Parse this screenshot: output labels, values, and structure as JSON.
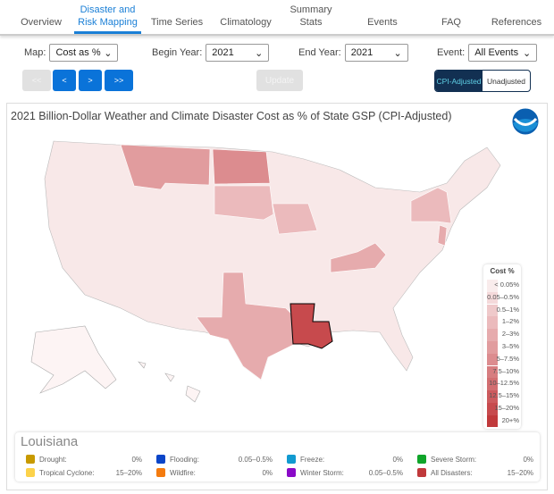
{
  "nav": {
    "tabs": [
      {
        "label": "Overview"
      },
      {
        "label": "Disaster and Risk Mapping",
        "active": true
      },
      {
        "label": "Time Series"
      },
      {
        "label": "Climatology"
      },
      {
        "label": "Summary Stats"
      },
      {
        "label": "Events"
      },
      {
        "label": "FAQ"
      },
      {
        "label": "References"
      }
    ]
  },
  "controls": {
    "map_label": "Map:",
    "map_value": "Cost as %",
    "begin_label": "Begin Year:",
    "begin_value": "2021",
    "end_label": "End Year:",
    "end_value": "2021",
    "event_label": "Event:",
    "event_value": "All Events",
    "first": "<<",
    "prev": "<",
    "next": ">",
    "last": ">>",
    "update": "Update",
    "cpi": "CPI-Adjusted",
    "unadj": "Unadjusted"
  },
  "map": {
    "title": "2021 Billion-Dollar Weather and Climate Disaster Cost as % of State GSP (CPI-Adjusted)",
    "logo_text": "NOAA",
    "legend": {
      "title": "Cost %",
      "bins": [
        {
          "label": "< 0.05%",
          "color": "#f9ecec"
        },
        {
          "label": "0.05–0.5%",
          "color": "#f4d9da"
        },
        {
          "label": "0.5–1%",
          "color": "#efc9ca"
        },
        {
          "label": "1–2%",
          "color": "#ebbabc"
        },
        {
          "label": "2–3%",
          "color": "#e6abad"
        },
        {
          "label": "3–5%",
          "color": "#e19c9e"
        },
        {
          "label": "5–7.5%",
          "color": "#dc8c8f"
        },
        {
          "label": "7.5–10%",
          "color": "#d77d80"
        },
        {
          "label": "10–12.5%",
          "color": "#d26e71"
        },
        {
          "label": "12.5–15%",
          "color": "#cc5a5d"
        },
        {
          "label": "15–20%",
          "color": "#c74a4d"
        },
        {
          "label": "20+%",
          "color": "#c0393b"
        }
      ]
    },
    "states": [
      {
        "name": "Montana",
        "bin": 5
      },
      {
        "name": "North Dakota",
        "bin": 6
      },
      {
        "name": "Texas",
        "bin": 4
      },
      {
        "name": "Louisiana",
        "bin": 10
      },
      {
        "name": "Kentucky",
        "bin": 4
      },
      {
        "name": "New Jersey",
        "bin": 4
      },
      {
        "name": "New York",
        "bin": 3
      },
      {
        "name": "Iowa",
        "bin": 3
      },
      {
        "name": "South Dakota",
        "bin": 3
      }
    ]
  },
  "selected": {
    "state": "Louisiana",
    "items": [
      {
        "label": "Drought:",
        "value": "0%",
        "color": "#c89a00"
      },
      {
        "label": "Flooding:",
        "value": "0.05–0.5%",
        "color": "#0a45c8"
      },
      {
        "label": "Freeze:",
        "value": "0%",
        "color": "#119ad0"
      },
      {
        "label": "Severe Storm:",
        "value": "0%",
        "color": "#10a52a"
      },
      {
        "label": "Tropical Cyclone:",
        "value": "15–20%",
        "color": "#fcd24a"
      },
      {
        "label": "Wildfire:",
        "value": "0%",
        "color": "#f47b0f"
      },
      {
        "label": "Winter Storm:",
        "value": "0.05–0.5%",
        "color": "#8a0ac8"
      },
      {
        "label": "All Disasters:",
        "value": "15–20%",
        "color": "#c0393b"
      }
    ]
  }
}
